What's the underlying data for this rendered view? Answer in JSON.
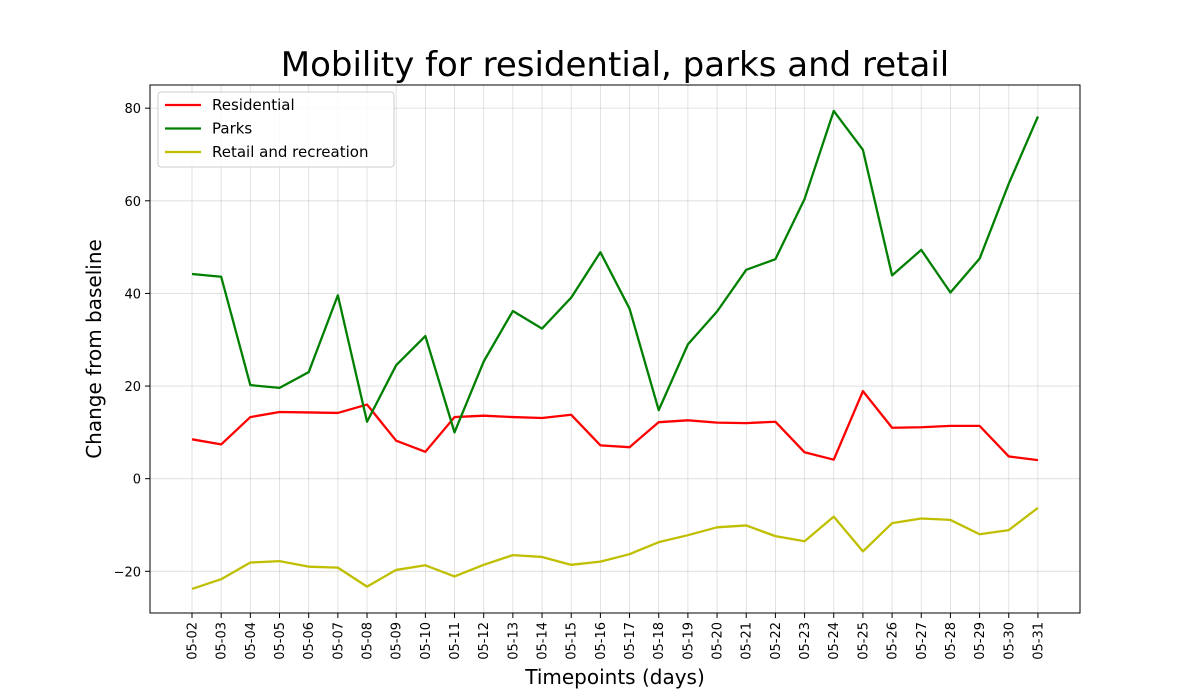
{
  "chart_data": {
    "type": "line",
    "title": "Mobility for residential, parks and retail",
    "xlabel": "Timepoints (days)",
    "ylabel": "Change from baseline",
    "categories": [
      "05-02",
      "05-03",
      "05-04",
      "05-05",
      "05-06",
      "05-07",
      "05-08",
      "05-09",
      "05-10",
      "05-11",
      "05-12",
      "05-13",
      "05-14",
      "05-15",
      "05-16",
      "05-17",
      "05-18",
      "05-19",
      "05-20",
      "05-21",
      "05-22",
      "05-23",
      "05-24",
      "05-25",
      "05-26",
      "05-27",
      "05-28",
      "05-29",
      "05-30",
      "05-31"
    ],
    "ylim": [
      -29,
      85
    ],
    "yticks": [
      -20,
      0,
      20,
      40,
      60,
      80
    ],
    "grid": true,
    "legend_position": "top-left",
    "series": [
      {
        "name": "Residential",
        "color": "#ff0000",
        "values": [
          8.5,
          7.4,
          13.3,
          14.4,
          14.3,
          14.2,
          16.0,
          8.2,
          5.8,
          13.3,
          13.6,
          13.3,
          13.1,
          13.8,
          7.2,
          6.8,
          12.2,
          12.6,
          12.1,
          12.0,
          12.3,
          5.7,
          4.1,
          18.9,
          11.0,
          11.1,
          11.4,
          11.4,
          4.8,
          4.0
        ]
      },
      {
        "name": "Parks",
        "color": "#008000",
        "values": [
          44.2,
          43.6,
          20.2,
          19.6,
          23.0,
          39.6,
          12.3,
          24.5,
          30.8,
          10.0,
          25.3,
          36.2,
          32.4,
          39.1,
          48.9,
          36.7,
          14.8,
          29.0,
          36.1,
          45.1,
          47.4,
          60.4,
          79.4,
          71.0,
          43.9,
          49.4,
          40.2,
          47.5,
          63.7,
          78.2
        ]
      },
      {
        "name": "Retail and recreation",
        "color": "#bfbf00",
        "values": [
          -23.8,
          -21.7,
          -18.1,
          -17.8,
          -19.0,
          -19.2,
          -23.3,
          -19.7,
          -18.7,
          -21.1,
          -18.6,
          -16.5,
          -16.9,
          -18.6,
          -17.9,
          -16.3,
          -13.7,
          -12.2,
          -10.5,
          -10.1,
          -12.4,
          -13.5,
          -8.2,
          -15.7,
          -9.6,
          -8.6,
          -8.9,
          -12.0,
          -11.1,
          -6.3
        ]
      }
    ]
  }
}
